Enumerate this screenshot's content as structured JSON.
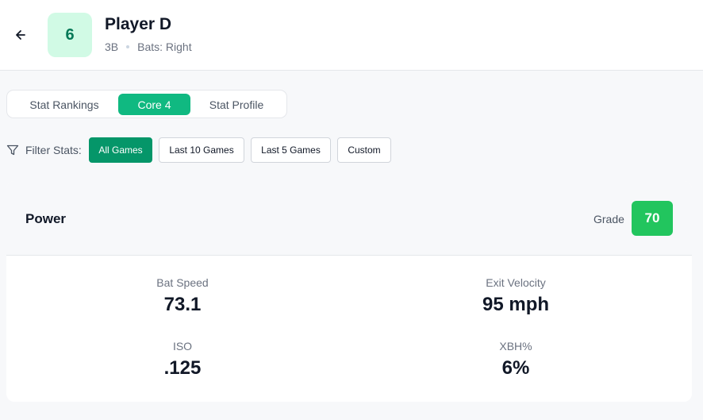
{
  "header": {
    "jersey_number": "6",
    "player_name": "Player D",
    "position": "3B",
    "bats": "Bats: Right"
  },
  "tabs": [
    {
      "label": "Stat Rankings",
      "active": false
    },
    {
      "label": "Core 4",
      "active": true
    },
    {
      "label": "Stat Profile",
      "active": false
    }
  ],
  "filters": {
    "label": "Filter Stats:",
    "options": [
      {
        "label": "All Games",
        "active": true
      },
      {
        "label": "Last 10 Games",
        "active": false
      },
      {
        "label": "Last 5 Games",
        "active": false
      },
      {
        "label": "Custom",
        "active": false
      }
    ]
  },
  "card": {
    "title": "Power",
    "grade_label": "Grade",
    "grade_value": "70",
    "stats": [
      {
        "label": "Bat Speed",
        "value": "73.1"
      },
      {
        "label": "Exit Velocity",
        "value": "95 mph"
      },
      {
        "label": "ISO",
        "value": ".125"
      },
      {
        "label": "XBH%",
        "value": "6%"
      }
    ]
  },
  "colors": {
    "accent": "#10b981",
    "accent_dark": "#059669",
    "grade_green": "#22c55e",
    "jersey_bg": "#d1fae5",
    "jersey_text": "#047857"
  },
  "icons": {
    "back": "arrow-left-icon",
    "filter": "filter-funnel-icon"
  }
}
